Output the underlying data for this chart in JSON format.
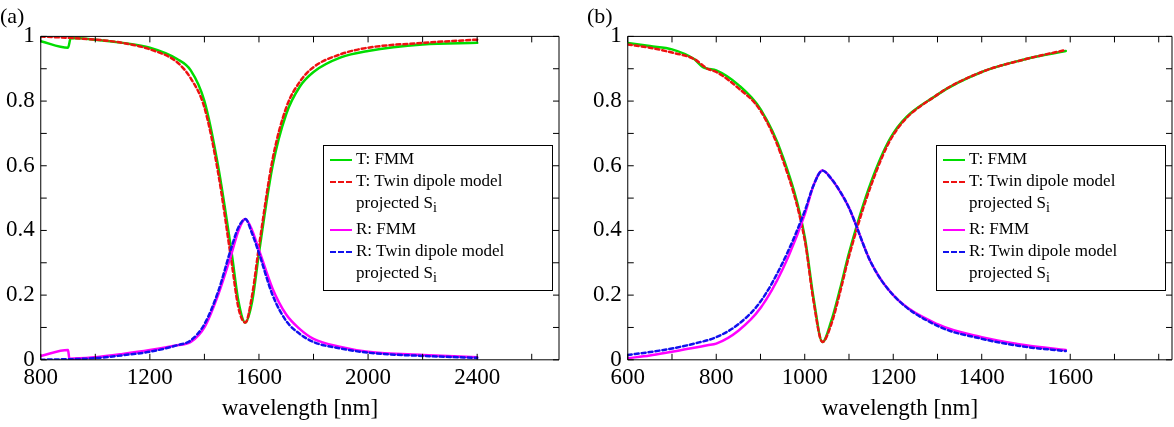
{
  "chart_data": [
    {
      "type": "line",
      "title": "(a)",
      "xlabel": "wavelength [nm]",
      "legend": "right",
      "xlim": [
        800,
        2700
      ],
      "ylim": [
        0,
        1
      ],
      "xticks": [
        800,
        {
          "value": 1000,
          "label": null
        },
        1200,
        {
          "value": 1400,
          "label": null
        },
        1600,
        {
          "value": 1800,
          "label": null
        },
        2000,
        {
          "value": 2200,
          "label": null
        },
        2400,
        {
          "value": 2600,
          "label": null
        }
      ],
      "yticks": [
        0,
        {
          "value": 0.1,
          "label": null
        },
        0.2,
        {
          "value": 0.3,
          "label": null
        },
        0.4,
        {
          "value": 0.5,
          "label": null
        },
        0.6,
        {
          "value": 0.7,
          "label": null
        },
        0.8,
        {
          "value": 0.9,
          "label": null
        },
        1
      ],
      "series": [
        {
          "name": "T: FMM",
          "color": "#00dd00",
          "line_style": "solid",
          "x": [
            800,
            900,
            910,
            1000,
            1100,
            1200,
            1300,
            1350,
            1400,
            1450,
            1500,
            1525,
            1550,
            1575,
            1600,
            1650,
            1700,
            1750,
            1800,
            1900,
            2000,
            2200,
            2400
          ],
          "values": [
            0.985,
            0.965,
            0.995,
            0.99,
            0.98,
            0.965,
            0.93,
            0.895,
            0.8,
            0.6,
            0.33,
            0.18,
            0.115,
            0.18,
            0.33,
            0.6,
            0.76,
            0.845,
            0.89,
            0.935,
            0.955,
            0.975,
            0.98
          ]
        },
        {
          "name": "T: Twin dipole model projected S$_{i}$",
          "color": "#ee1111",
          "line_style": "dashed",
          "x": [
            800,
            1000,
            1100,
            1200,
            1300,
            1350,
            1400,
            1450,
            1500,
            1525,
            1550,
            1575,
            1600,
            1650,
            1700,
            1750,
            1800,
            1900,
            2000,
            2200,
            2400
          ],
          "values": [
            1.0,
            0.99,
            0.98,
            0.96,
            0.92,
            0.87,
            0.78,
            0.58,
            0.3,
            0.16,
            0.115,
            0.2,
            0.35,
            0.62,
            0.78,
            0.86,
            0.905,
            0.945,
            0.965,
            0.98,
            0.99
          ]
        },
        {
          "name": "R: FMM",
          "color": "#ff00ff",
          "line_style": "solid",
          "x": [
            800,
            900,
            905,
            1000,
            1100,
            1200,
            1300,
            1350,
            1400,
            1450,
            1500,
            1525,
            1550,
            1575,
            1600,
            1650,
            1700,
            1750,
            1800,
            1900,
            2000,
            2200,
            2400
          ],
          "values": [
            0.012,
            0.03,
            0.003,
            0.008,
            0.018,
            0.03,
            0.045,
            0.055,
            0.1,
            0.2,
            0.33,
            0.4,
            0.435,
            0.4,
            0.34,
            0.22,
            0.14,
            0.095,
            0.065,
            0.04,
            0.025,
            0.015,
            0.008
          ]
        },
        {
          "name": "R: Twin dipole model projected S$_{i}$",
          "color": "#1111ee",
          "line_style": "dashed",
          "x": [
            800,
            1000,
            1100,
            1200,
            1300,
            1350,
            1400,
            1450,
            1500,
            1525,
            1550,
            1575,
            1600,
            1650,
            1700,
            1750,
            1800,
            1900,
            2000,
            2200,
            2400
          ],
          "values": [
            0.0,
            0.005,
            0.014,
            0.025,
            0.045,
            0.06,
            0.11,
            0.21,
            0.35,
            0.41,
            0.435,
            0.39,
            0.33,
            0.2,
            0.12,
            0.08,
            0.055,
            0.035,
            0.022,
            0.012,
            0.006
          ]
        }
      ]
    },
    {
      "type": "line",
      "title": "(b)",
      "xlabel": "wavelength [nm]",
      "legend": "right",
      "xlim": [
        600,
        1830
      ],
      "ylim": [
        0,
        1
      ],
      "xticks": [
        600,
        {
          "value": 700,
          "label": null
        },
        800,
        {
          "value": 900,
          "label": null
        },
        1000,
        {
          "value": 1100,
          "label": null
        },
        1200,
        {
          "value": 1300,
          "label": null
        },
        1400,
        {
          "value": 1500,
          "label": null
        },
        1600,
        {
          "value": 1700,
          "label": null
        },
        {
          "value": 1800,
          "label": null
        }
      ],
      "yticks": [
        0,
        {
          "value": 0.1,
          "label": null
        },
        0.2,
        {
          "value": 0.3,
          "label": null
        },
        0.4,
        {
          "value": 0.5,
          "label": null
        },
        0.6,
        {
          "value": 0.7,
          "label": null
        },
        0.8,
        {
          "value": 0.9,
          "label": null
        },
        1
      ],
      "series": [
        {
          "name": "T: FMM",
          "color": "#00dd00",
          "line_style": "solid",
          "x": [
            600,
            650,
            700,
            750,
            770,
            780,
            800,
            850,
            900,
            950,
            1000,
            1020,
            1040,
            1060,
            1080,
            1100,
            1150,
            1200,
            1300,
            1400,
            1500,
            1590
          ],
          "values": [
            0.98,
            0.97,
            0.96,
            0.93,
            0.905,
            0.9,
            0.895,
            0.85,
            0.775,
            0.63,
            0.38,
            0.19,
            0.055,
            0.12,
            0.22,
            0.33,
            0.55,
            0.7,
            0.82,
            0.89,
            0.93,
            0.955
          ]
        },
        {
          "name": "T: Twin dipole model projected S$_{i}$",
          "color": "#ee1111",
          "line_style": "dashed",
          "x": [
            600,
            650,
            700,
            750,
            780,
            800,
            850,
            900,
            950,
            1000,
            1020,
            1040,
            1060,
            1080,
            1100,
            1150,
            1200,
            1300,
            1400,
            1500,
            1590
          ],
          "values": [
            0.975,
            0.965,
            0.95,
            0.93,
            0.9,
            0.89,
            0.84,
            0.77,
            0.62,
            0.37,
            0.18,
            0.055,
            0.11,
            0.21,
            0.32,
            0.54,
            0.695,
            0.82,
            0.89,
            0.93,
            0.958
          ]
        },
        {
          "name": "R: FMM",
          "color": "#ff00ff",
          "line_style": "solid",
          "x": [
            600,
            650,
            700,
            750,
            780,
            800,
            850,
            900,
            950,
            1000,
            1020,
            1040,
            1060,
            1080,
            1100,
            1150,
            1200,
            1300,
            1400,
            1500,
            1590
          ],
          "values": [
            0.005,
            0.013,
            0.025,
            0.037,
            0.045,
            0.05,
            0.09,
            0.16,
            0.28,
            0.45,
            0.54,
            0.585,
            0.56,
            0.52,
            0.47,
            0.3,
            0.2,
            0.11,
            0.07,
            0.045,
            0.03
          ]
        },
        {
          "name": "R: Twin dipole model projected S$_{i}$",
          "color": "#1111ee",
          "line_style": "dashed",
          "x": [
            600,
            650,
            700,
            750,
            800,
            850,
            900,
            950,
            1000,
            1020,
            1040,
            1060,
            1080,
            1100,
            1150,
            1200,
            1300,
            1400,
            1500,
            1590
          ],
          "values": [
            0.015,
            0.024,
            0.035,
            0.05,
            0.07,
            0.11,
            0.18,
            0.3,
            0.46,
            0.54,
            0.585,
            0.56,
            0.52,
            0.47,
            0.3,
            0.2,
            0.105,
            0.065,
            0.04,
            0.027
          ]
        }
      ]
    }
  ]
}
